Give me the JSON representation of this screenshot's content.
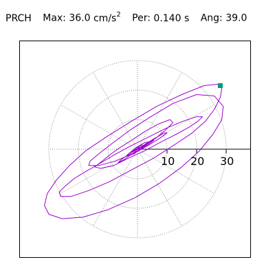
{
  "header": {
    "station": "PRCH",
    "max_label": "Max:",
    "max_value": "36.0",
    "max_unit": "cm/s",
    "max_unit_exp": "2",
    "per_label": "Per:",
    "per_value": "0.140 s",
    "ang_label": "Ang:",
    "ang_value": "39.0"
  },
  "chart_data": {
    "type": "line",
    "title": "",
    "xlabel": "",
    "ylabel": "",
    "max_radius": 30,
    "radial_ticks": [
      10,
      20,
      30
    ],
    "radial_tick_labels": [
      "10",
      "20",
      "30"
    ],
    "grid": true,
    "angular_spokes_deg": [
      0,
      30,
      60,
      90,
      120,
      150,
      180,
      210,
      240,
      270,
      300,
      330
    ],
    "peak_angle_deg": 39.0,
    "series": [
      {
        "color": "#9900cc",
        "points": [
          [
            0.0,
            0.0
          ],
          [
            3.0,
            1.5
          ],
          [
            6.5,
            4.0
          ],
          [
            9.5,
            6.5
          ],
          [
            12.0,
            9.0
          ],
          [
            11.0,
            10.0
          ],
          [
            7.0,
            8.5
          ],
          [
            2.5,
            6.0
          ],
          [
            -2.0,
            3.0
          ],
          [
            -6.0,
            0.5
          ],
          [
            -9.5,
            -2.0
          ],
          [
            -12.5,
            -4.5
          ],
          [
            -14.5,
            -6.0
          ],
          [
            -12.5,
            -6.5
          ],
          [
            -8.0,
            -5.5
          ],
          [
            -3.0,
            -3.0
          ],
          [
            2.5,
            -0.5
          ],
          [
            8.0,
            2.5
          ],
          [
            13.0,
            5.0
          ],
          [
            17.5,
            7.5
          ],
          [
            20.5,
            9.5
          ],
          [
            22.0,
            11.0
          ],
          [
            20.0,
            11.0
          ],
          [
            15.5,
            9.5
          ],
          [
            9.5,
            7.0
          ],
          [
            3.5,
            4.0
          ],
          [
            -2.5,
            1.0
          ],
          [
            -8.0,
            -2.0
          ],
          [
            -13.0,
            -5.0
          ],
          [
            -17.5,
            -7.5
          ],
          [
            -21.5,
            -10.0
          ],
          [
            -24.5,
            -12.5
          ],
          [
            -26.5,
            -14.5
          ],
          [
            -26.0,
            -16.0
          ],
          [
            -22.5,
            -16.0
          ],
          [
            -16.5,
            -14.0
          ],
          [
            -9.5,
            -11.0
          ],
          [
            -2.0,
            -7.0
          ],
          [
            5.5,
            -3.0
          ],
          [
            12.5,
            1.5
          ],
          [
            18.5,
            5.5
          ],
          [
            23.0,
            9.5
          ],
          [
            26.0,
            13.5
          ],
          [
            28.0,
            17.5
          ],
          [
            28.5,
            20.5
          ],
          [
            27.5,
            22.0
          ],
          [
            22.5,
            21.5
          ],
          [
            15.0,
            18.5
          ],
          [
            6.5,
            14.5
          ],
          [
            -2.0,
            9.5
          ],
          [
            -10.0,
            4.5
          ],
          [
            -17.5,
            -0.5
          ],
          [
            -23.0,
            -5.5
          ],
          [
            -27.5,
            -10.5
          ],
          [
            -30.5,
            -15.0
          ],
          [
            -31.5,
            -19.0
          ],
          [
            -30.0,
            -22.0
          ],
          [
            -25.5,
            -23.5
          ],
          [
            -18.5,
            -23.0
          ],
          [
            -10.0,
            -20.5
          ],
          [
            -1.0,
            -16.5
          ],
          [
            7.5,
            -11.5
          ],
          [
            15.0,
            -6.0
          ],
          [
            21.0,
            -0.5
          ],
          [
            25.5,
            5.0
          ],
          [
            28.5,
            10.0
          ],
          [
            29.0,
            14.5
          ],
          [
            26.0,
            18.0
          ],
          [
            20.0,
            18.5
          ],
          [
            12.0,
            15.5
          ],
          [
            4.5,
            11.0
          ],
          [
            -2.5,
            6.5
          ],
          [
            -8.5,
            2.0
          ],
          [
            -13.0,
            -1.5
          ],
          [
            -16.0,
            -4.0
          ],
          [
            -16.5,
            -5.5
          ],
          [
            -13.0,
            -5.5
          ],
          [
            -7.5,
            -4.0
          ],
          [
            -1.5,
            -1.5
          ],
          [
            4.0,
            1.5
          ],
          [
            8.0,
            4.0
          ],
          [
            10.0,
            5.5
          ],
          [
            9.0,
            5.5
          ],
          [
            5.5,
            3.5
          ],
          [
            1.5,
            1.0
          ],
          [
            -2.5,
            -1.5
          ],
          [
            -5.5,
            -3.5
          ],
          [
            -6.5,
            -4.5
          ],
          [
            -4.5,
            -3.5
          ],
          [
            -1.0,
            -1.0
          ],
          [
            2.5,
            1.5
          ],
          [
            5.0,
            3.0
          ],
          [
            5.5,
            3.0
          ],
          [
            3.5,
            1.5
          ],
          [
            0.5,
            -0.5
          ],
          [
            -2.5,
            -2.0
          ],
          [
            -4.0,
            -2.5
          ],
          [
            -3.0,
            -1.5
          ],
          [
            -0.5,
            0.5
          ],
          [
            2.0,
            2.0
          ],
          [
            3.5,
            2.5
          ],
          [
            3.0,
            1.5
          ],
          [
            1.0,
            0.0
          ],
          [
            -1.0,
            -1.5
          ],
          [
            -2.5,
            -2.0
          ],
          [
            -2.0,
            -1.0
          ],
          [
            0.0,
            0.5
          ],
          [
            1.5,
            1.5
          ],
          [
            2.0,
            1.0
          ],
          [
            1.0,
            0.0
          ],
          [
            -0.5,
            -1.0
          ],
          [
            -1.0,
            -0.5
          ],
          [
            0.0,
            0.5
          ],
          [
            0.5,
            0.5
          ],
          [
            0.0,
            0.0
          ]
        ]
      }
    ],
    "markers": [
      {
        "x": 28.0,
        "y": 21.5,
        "color": "#009977",
        "shape": "square"
      }
    ]
  }
}
